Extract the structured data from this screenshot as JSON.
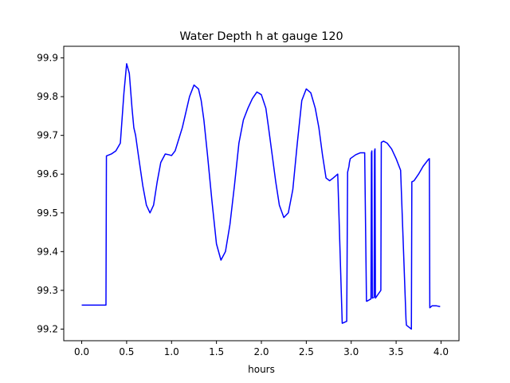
{
  "chart_data": {
    "type": "line",
    "title": "Water Depth h at gauge 120",
    "xlabel": "hours",
    "ylabel": "",
    "xlim": [
      -0.2,
      4.2
    ],
    "ylim": [
      99.17,
      99.93
    ],
    "xticks": [
      0.0,
      0.5,
      1.0,
      1.5,
      2.0,
      2.5,
      3.0,
      3.5,
      4.0
    ],
    "xtick_labels": [
      "0.0",
      "0.5",
      "1.0",
      "1.5",
      "2.0",
      "2.5",
      "3.0",
      "3.5",
      "4.0"
    ],
    "yticks": [
      99.2,
      99.3,
      99.4,
      99.5,
      99.6,
      99.7,
      99.8,
      99.9
    ],
    "ytick_labels": [
      "99.2",
      "99.3",
      "99.4",
      "99.5",
      "99.6",
      "99.7",
      "99.8",
      "99.9"
    ],
    "grid": false,
    "legend": "none",
    "series": [
      {
        "color": "#0000ff",
        "x": [
          0.0,
          0.27,
          0.275,
          0.33,
          0.38,
          0.43,
          0.47,
          0.5,
          0.53,
          0.56,
          0.58,
          0.6,
          0.63,
          0.68,
          0.72,
          0.76,
          0.8,
          0.84,
          0.88,
          0.93,
          0.97,
          1.0,
          1.04,
          1.08,
          1.12,
          1.16,
          1.2,
          1.25,
          1.3,
          1.33,
          1.36,
          1.4,
          1.45,
          1.5,
          1.55,
          1.6,
          1.65,
          1.7,
          1.75,
          1.8,
          1.85,
          1.9,
          1.95,
          2.0,
          2.05,
          2.08,
          2.12,
          2.16,
          2.2,
          2.25,
          2.3,
          2.35,
          2.4,
          2.45,
          2.5,
          2.55,
          2.6,
          2.64,
          2.68,
          2.72,
          2.76,
          2.8,
          2.85,
          2.9,
          2.95,
          2.96,
          2.965,
          2.975,
          2.98,
          2.99,
          3.05,
          3.1,
          3.15,
          3.17,
          3.175,
          3.22,
          3.225,
          3.23,
          3.235,
          3.255,
          3.26,
          3.265,
          3.27,
          3.33,
          3.335,
          3.36,
          3.4,
          3.45,
          3.5,
          3.55,
          3.61,
          3.615,
          3.67,
          3.675,
          3.7,
          3.75,
          3.8,
          3.86,
          3.87,
          3.875,
          3.9,
          3.95,
          3.99
        ],
        "y": [
          99.262,
          99.262,
          99.647,
          99.652,
          99.66,
          99.68,
          99.81,
          99.885,
          99.86,
          99.77,
          99.72,
          99.7,
          99.65,
          99.57,
          99.52,
          99.5,
          99.52,
          99.58,
          99.63,
          99.652,
          99.65,
          99.648,
          99.66,
          99.69,
          99.72,
          99.76,
          99.8,
          99.83,
          99.82,
          99.79,
          99.74,
          99.65,
          99.53,
          99.42,
          99.378,
          99.4,
          99.47,
          99.57,
          99.68,
          99.74,
          99.77,
          99.795,
          99.812,
          99.805,
          99.77,
          99.72,
          99.65,
          99.58,
          99.52,
          99.488,
          99.5,
          99.56,
          99.68,
          99.79,
          99.82,
          99.81,
          99.77,
          99.72,
          99.65,
          99.59,
          99.583,
          99.59,
          99.6,
          99.215,
          99.22,
          99.605,
          99.61,
          99.62,
          99.63,
          99.64,
          99.65,
          99.655,
          99.655,
          99.272,
          99.272,
          99.278,
          99.655,
          99.66,
          99.28,
          99.282,
          99.66,
          99.665,
          99.28,
          99.3,
          99.682,
          99.685,
          99.68,
          99.665,
          99.64,
          99.61,
          99.225,
          99.21,
          99.2,
          99.58,
          99.583,
          99.6,
          99.62,
          99.638,
          99.64,
          99.255,
          99.26,
          99.26,
          99.258
        ]
      }
    ]
  }
}
